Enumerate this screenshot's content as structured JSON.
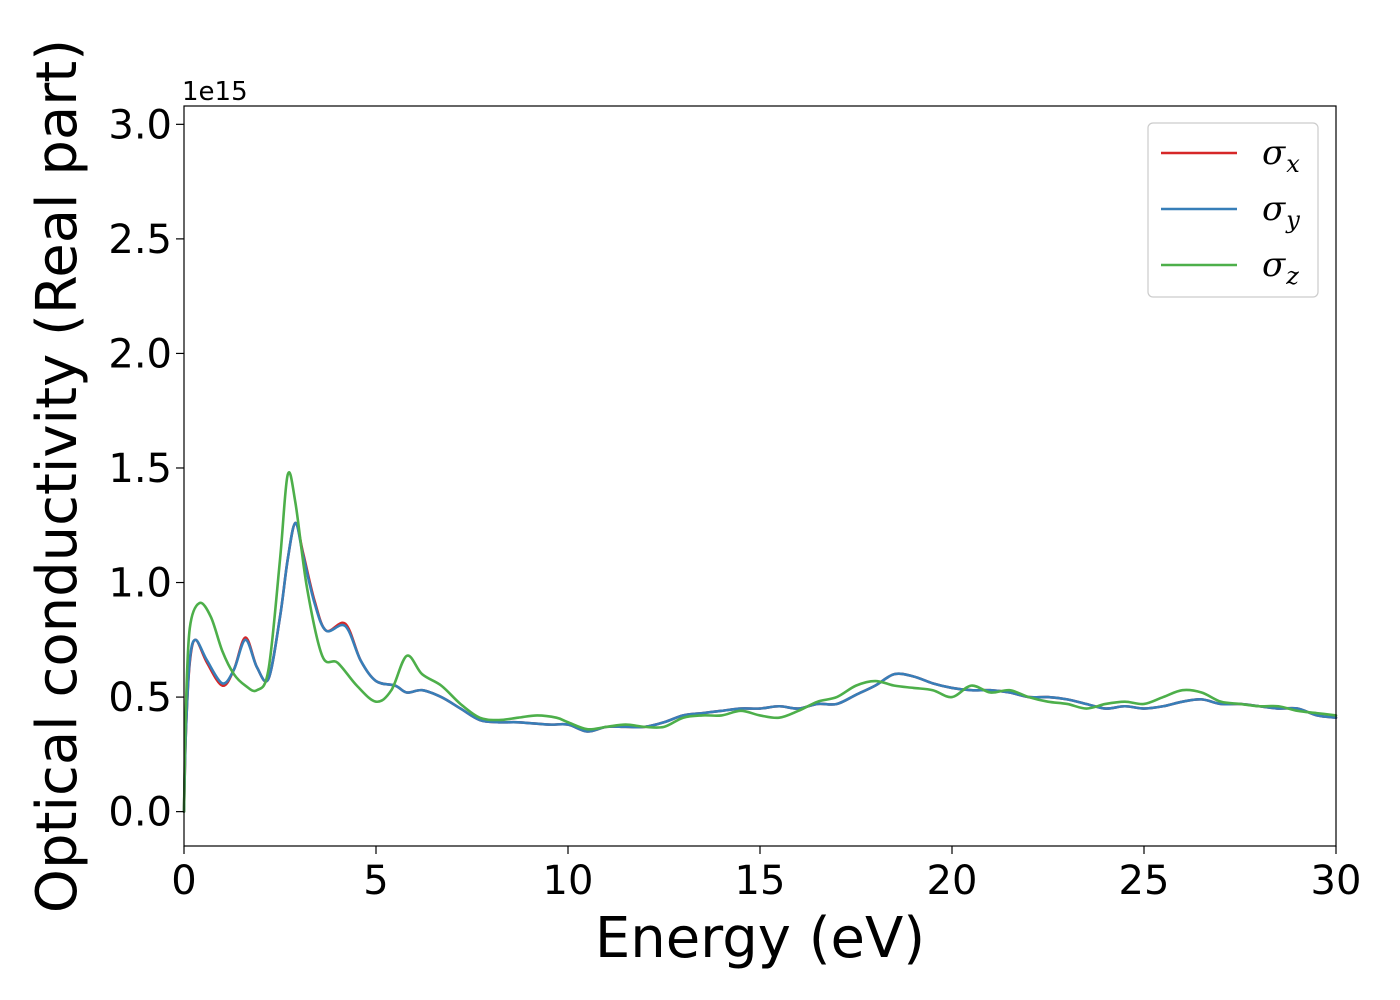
{
  "chart_data": {
    "type": "line",
    "title": "",
    "xlabel": "Energy (eV)",
    "ylabel": "Optical conductivity (Real part)",
    "y_offset_label": "1e15",
    "xlim": [
      0,
      30
    ],
    "ylim": [
      -0.15,
      3.08
    ],
    "x_ticks": [
      0,
      5,
      10,
      15,
      20,
      25,
      30
    ],
    "x_tick_labels": [
      "0",
      "5",
      "10",
      "15",
      "20",
      "25",
      "30"
    ],
    "y_ticks": [
      0.0,
      0.5,
      1.0,
      1.5,
      2.0,
      2.5,
      3.0
    ],
    "y_tick_labels": [
      "0.0",
      "0.5",
      "1.0",
      "1.5",
      "2.0",
      "2.5",
      "3.0"
    ],
    "grid": false,
    "legend_position": "top-right",
    "series": [
      {
        "name": "σ",
        "subscript": "x",
        "color": "#d62728",
        "x": [
          0,
          0.05,
          0.15,
          0.3,
          0.6,
          1.0,
          1.3,
          1.6,
          1.9,
          2.2,
          2.5,
          2.7,
          2.9,
          3.1,
          3.4,
          3.7,
          4.2,
          4.6,
          5.0,
          5.5,
          5.8,
          6.2,
          6.7,
          7.2,
          7.7,
          8.2,
          8.7,
          9.5,
          10.0,
          10.5,
          11.0,
          11.5,
          12.0,
          12.5,
          13.0,
          13.5,
          14.0,
          14.5,
          15.0,
          15.5,
          16.0,
          16.5,
          17.0,
          17.5,
          18.0,
          18.5,
          19.0,
          19.5,
          20.0,
          20.5,
          21.0,
          21.5,
          22.0,
          22.5,
          23.0,
          23.5,
          24.0,
          24.5,
          25.0,
          25.5,
          26.0,
          26.5,
          27.0,
          27.5,
          28.0,
          28.5,
          29.0,
          29.5,
          30.0
        ],
        "y": [
          0.0,
          0.35,
          0.65,
          0.75,
          0.65,
          0.55,
          0.62,
          0.76,
          0.63,
          0.58,
          0.85,
          1.1,
          1.26,
          1.13,
          0.92,
          0.79,
          0.82,
          0.66,
          0.57,
          0.55,
          0.52,
          0.53,
          0.5,
          0.45,
          0.4,
          0.39,
          0.39,
          0.38,
          0.38,
          0.35,
          0.37,
          0.37,
          0.37,
          0.39,
          0.42,
          0.43,
          0.44,
          0.45,
          0.45,
          0.46,
          0.45,
          0.47,
          0.47,
          0.51,
          0.55,
          0.6,
          0.59,
          0.56,
          0.54,
          0.53,
          0.53,
          0.52,
          0.5,
          0.5,
          0.49,
          0.47,
          0.45,
          0.46,
          0.45,
          0.46,
          0.48,
          0.49,
          0.47,
          0.47,
          0.46,
          0.45,
          0.45,
          0.42,
          0.41
        ]
      },
      {
        "name": "σ",
        "subscript": "y",
        "color": "#377eb8",
        "x": [
          0,
          0.05,
          0.15,
          0.3,
          0.6,
          1.0,
          1.3,
          1.6,
          1.9,
          2.2,
          2.5,
          2.7,
          2.9,
          3.1,
          3.4,
          3.7,
          4.2,
          4.6,
          5.0,
          5.5,
          5.8,
          6.2,
          6.7,
          7.2,
          7.7,
          8.2,
          8.7,
          9.5,
          10.0,
          10.5,
          11.0,
          11.5,
          12.0,
          12.5,
          13.0,
          13.5,
          14.0,
          14.5,
          15.0,
          15.5,
          16.0,
          16.5,
          17.0,
          17.5,
          18.0,
          18.5,
          19.0,
          19.5,
          20.0,
          20.5,
          21.0,
          21.5,
          22.0,
          22.5,
          23.0,
          23.5,
          24.0,
          24.5,
          25.0,
          25.5,
          26.0,
          26.5,
          27.0,
          27.5,
          28.0,
          28.5,
          29.0,
          29.5,
          30.0
        ],
        "y": [
          0.0,
          0.35,
          0.66,
          0.75,
          0.66,
          0.56,
          0.62,
          0.75,
          0.63,
          0.58,
          0.85,
          1.1,
          1.26,
          1.12,
          0.91,
          0.79,
          0.81,
          0.66,
          0.57,
          0.55,
          0.52,
          0.53,
          0.5,
          0.45,
          0.4,
          0.39,
          0.39,
          0.38,
          0.38,
          0.35,
          0.37,
          0.37,
          0.37,
          0.39,
          0.42,
          0.43,
          0.44,
          0.45,
          0.45,
          0.46,
          0.45,
          0.47,
          0.47,
          0.51,
          0.55,
          0.6,
          0.59,
          0.56,
          0.54,
          0.53,
          0.53,
          0.52,
          0.5,
          0.5,
          0.49,
          0.47,
          0.45,
          0.46,
          0.45,
          0.46,
          0.48,
          0.49,
          0.47,
          0.47,
          0.46,
          0.45,
          0.45,
          0.42,
          0.41
        ]
      },
      {
        "name": "σ",
        "subscript": "z",
        "color": "#4daf4a",
        "x": [
          0,
          0.05,
          0.15,
          0.4,
          0.7,
          1.0,
          1.3,
          1.6,
          1.9,
          2.2,
          2.5,
          2.7,
          2.9,
          3.2,
          3.6,
          4.0,
          4.5,
          5.0,
          5.4,
          5.8,
          6.2,
          6.7,
          7.2,
          7.7,
          8.2,
          8.7,
          9.2,
          9.7,
          10.0,
          10.5,
          11.0,
          11.5,
          12.0,
          12.5,
          13.0,
          13.5,
          14.0,
          14.5,
          15.0,
          15.5,
          16.0,
          16.5,
          17.0,
          17.5,
          18.0,
          18.5,
          19.0,
          19.5,
          20.0,
          20.5,
          21.0,
          21.5,
          22.0,
          22.5,
          23.0,
          23.5,
          24.0,
          24.5,
          25.0,
          25.5,
          26.0,
          26.5,
          27.0,
          27.5,
          28.0,
          28.5,
          29.0,
          29.5,
          30.0
        ],
        "y": [
          0.0,
          0.45,
          0.8,
          0.91,
          0.85,
          0.7,
          0.6,
          0.55,
          0.53,
          0.62,
          1.1,
          1.47,
          1.35,
          0.98,
          0.68,
          0.65,
          0.55,
          0.48,
          0.53,
          0.68,
          0.6,
          0.55,
          0.47,
          0.41,
          0.4,
          0.41,
          0.42,
          0.41,
          0.39,
          0.36,
          0.37,
          0.38,
          0.37,
          0.37,
          0.41,
          0.42,
          0.42,
          0.44,
          0.42,
          0.41,
          0.44,
          0.48,
          0.5,
          0.55,
          0.57,
          0.55,
          0.54,
          0.53,
          0.5,
          0.55,
          0.52,
          0.53,
          0.5,
          0.48,
          0.47,
          0.45,
          0.47,
          0.48,
          0.47,
          0.5,
          0.53,
          0.52,
          0.48,
          0.47,
          0.46,
          0.46,
          0.44,
          0.43,
          0.42
        ]
      }
    ]
  }
}
